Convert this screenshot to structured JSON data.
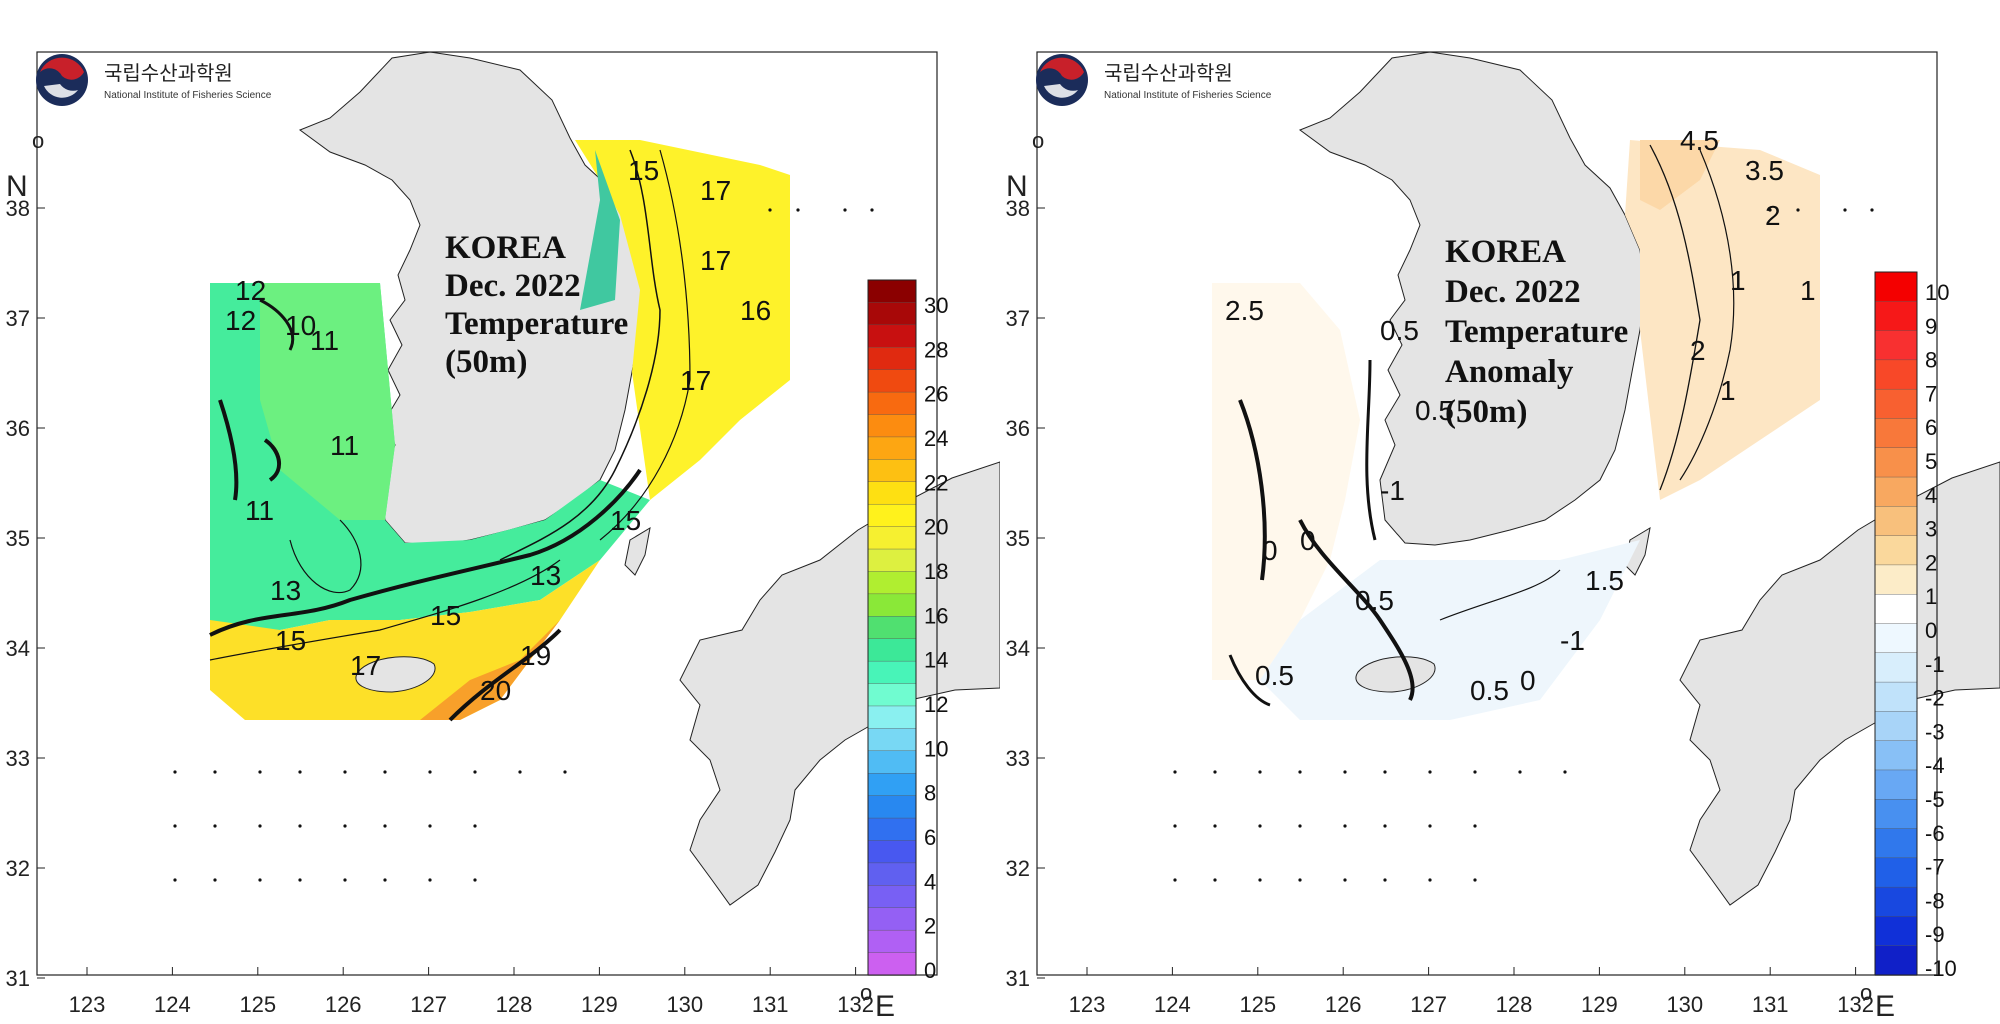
{
  "logo": {
    "korean": "국립수산과학원",
    "english": "National Institute of Fisheries Science"
  },
  "axes": {
    "x_ticks": [
      "123",
      "124",
      "125",
      "126",
      "127",
      "128",
      "129",
      "130",
      "131",
      "132"
    ],
    "y_ticks": [
      "31",
      "32",
      "33",
      "34",
      "35",
      "36",
      "37",
      "38"
    ],
    "x_unit": "E",
    "y_unit": "N",
    "degree_symbol": "o"
  },
  "panels": [
    {
      "title_lines": [
        "KOREA",
        "Dec. 2022",
        "Temperature",
        "(50m)"
      ],
      "colorbar_labels": [
        "30",
        "28",
        "26",
        "24",
        "22",
        "20",
        "18",
        "16",
        "14",
        "12",
        "10",
        "8",
        "6",
        "4",
        "2",
        "0"
      ],
      "colorbar_colors": [
        "#8b0000",
        "#a80808",
        "#c81010",
        "#e02a10",
        "#f04a10",
        "#f86a10",
        "#fc8c10",
        "#fda612",
        "#fdc012",
        "#fee012",
        "#fff21c",
        "#f6f030",
        "#ddf040",
        "#b0ee30",
        "#8ae838",
        "#50e070",
        "#3ce898",
        "#48f4b8",
        "#70fcd0",
        "#8af0f0",
        "#78d8f4",
        "#50bcf4",
        "#30a0f4",
        "#2888f0",
        "#3070f0",
        "#4858f0",
        "#6060f0",
        "#7860f4",
        "#9460f4",
        "#b060f4",
        "#cc60f0"
      ],
      "contour_labels": [
        "15",
        "17",
        "17",
        "16",
        "17",
        "15",
        "13",
        "15",
        "15",
        "17",
        "19",
        "20",
        "13",
        "11",
        "12",
        "11",
        "10",
        "12",
        "11"
      ],
      "region_colors": [
        "#fef22a",
        "#fde028",
        "#45ec9c",
        "#6cf080",
        "#f8a02a",
        "#fac83a"
      ]
    },
    {
      "title_lines": [
        "KOREA",
        "Dec. 2022",
        "Temperature",
        "Anomaly",
        "(50m)"
      ],
      "colorbar_labels": [
        "10",
        "9",
        "8",
        "7",
        "6",
        "5",
        "4",
        "3",
        "2",
        "1",
        "0",
        "-1",
        "-2",
        "-3",
        "-4",
        "-5",
        "-6",
        "-7",
        "-8",
        "-9",
        "-10"
      ],
      "colorbar_colors": [
        "#f40000",
        "#f61818",
        "#f83030",
        "#f84828",
        "#f86030",
        "#f8783a",
        "#f8904a",
        "#f8a860",
        "#f8c07c",
        "#fad89c",
        "#fcecc8",
        "#ffffff",
        "#eef8ff",
        "#d8eefc",
        "#c0e2fa",
        "#a8d4f8",
        "#88c0f6",
        "#68a8f4",
        "#4890f0",
        "#3078ec",
        "#2060e8",
        "#1848e0",
        "#1030d8",
        "#1020c8"
      ],
      "contour_labels": [
        "4.5",
        "3.5",
        "2",
        "1",
        "0.5",
        "0.5",
        "0.5",
        "-1",
        "0",
        "0.5",
        "0",
        "1.5",
        "-1",
        "0",
        "0.5",
        "2.5",
        "1",
        "2",
        "1"
      ],
      "region_colors": [
        "#fde6c4",
        "#fcd8a8",
        "#fff8ec",
        "#ffffff",
        "#eef6fc"
      ]
    }
  ]
}
